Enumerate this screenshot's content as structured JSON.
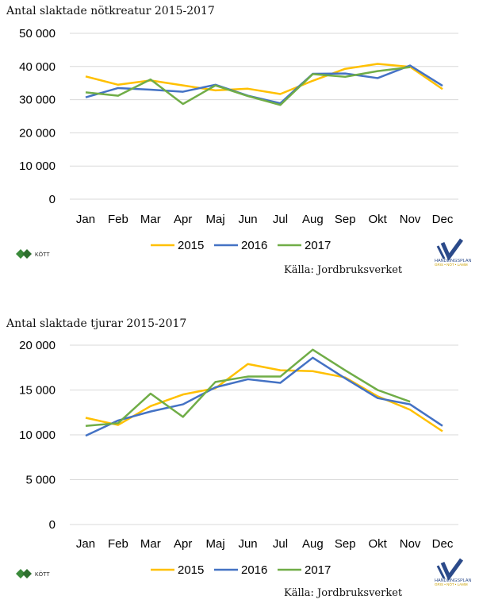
{
  "chart_data": [
    {
      "type": "line",
      "title": "Antal slaktade nötkreatur 2015-2017",
      "source": "Källa: Jordbruksverket",
      "categories": [
        "Jan",
        "Feb",
        "Mar",
        "Apr",
        "Maj",
        "Jun",
        "Jul",
        "Aug",
        "Sep",
        "Okt",
        "Nov",
        "Dec"
      ],
      "ylim": [
        0,
        50000
      ],
      "yticks": [
        "0",
        "10 000",
        "20 000",
        "30 000",
        "40 000",
        "50 000"
      ],
      "grid": true,
      "legend": "bottom",
      "series": [
        {
          "name": "2015",
          "color": "#FFC000",
          "values": [
            37000,
            34500,
            35800,
            34300,
            32800,
            33300,
            31700,
            35700,
            39300,
            40800,
            39900,
            33200
          ]
        },
        {
          "name": "2016",
          "color": "#4472C4",
          "values": [
            30700,
            33500,
            33000,
            32400,
            34500,
            31200,
            28900,
            37800,
            37900,
            36500,
            40300,
            34200
          ]
        },
        {
          "name": "2017",
          "color": "#70AD47",
          "values": [
            32200,
            31200,
            36100,
            28700,
            34300,
            31100,
            28400,
            37700,
            36900,
            38600,
            39800,
            null
          ]
        }
      ]
    },
    {
      "type": "line",
      "title": "Antal slaktade tjurar 2015-2017",
      "source": "Källa: Jordbruksverket",
      "categories": [
        "Jan",
        "Feb",
        "Mar",
        "Apr",
        "Maj",
        "Jun",
        "Jul",
        "Aug",
        "Sep",
        "Okt",
        "Nov",
        "Dec"
      ],
      "ylim": [
        0,
        20000
      ],
      "yticks": [
        "0",
        "5 000",
        "10 000",
        "15 000",
        "20 000"
      ],
      "grid": true,
      "legend": "bottom",
      "series": [
        {
          "name": "2015",
          "color": "#FFC000",
          "values": [
            11900,
            11100,
            13200,
            14500,
            15200,
            17900,
            17200,
            17100,
            16400,
            14300,
            12800,
            10400
          ]
        },
        {
          "name": "2016",
          "color": "#4472C4",
          "values": [
            9900,
            11600,
            12600,
            13400,
            15300,
            16200,
            15800,
            18600,
            16300,
            14100,
            13400,
            11000
          ]
        },
        {
          "name": "2017",
          "color": "#70AD47",
          "values": [
            11000,
            11300,
            14600,
            12000,
            15900,
            16500,
            16500,
            19500,
            17200,
            15000,
            13700,
            null
          ]
        }
      ]
    }
  ],
  "logos": {
    "left_text": "KÖTT",
    "right_text_1": "HANDLINGSPLAN",
    "right_text_2": "GRIS • NÖT • LAMM"
  }
}
